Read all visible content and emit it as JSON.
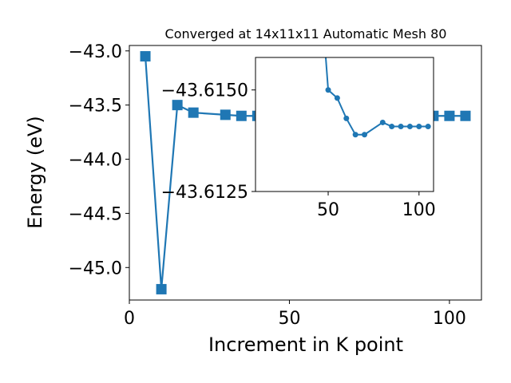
{
  "chart_data": [
    {
      "type": "line",
      "title": "Converged at 14x11x11 Automatic Mesh 80",
      "xlabel": "Increment in K point",
      "ylabel": "Energy (eV)",
      "xlim": [
        0,
        110
      ],
      "ylim": [
        -45.3,
        -42.95
      ],
      "xticks": [
        0,
        50,
        100
      ],
      "xtick_labels": [
        "0",
        "50",
        "100"
      ],
      "yticks": [
        -43.0,
        -43.5,
        -44.0,
        -44.5,
        -45.0
      ],
      "ytick_labels": [
        "−43.0",
        "−43.5",
        "−44.0",
        "−44.5",
        "−45.0"
      ],
      "marker": "square",
      "color": "#1f77b4",
      "grid": false,
      "series": [
        {
          "x": [
            5,
            10,
            15,
            20,
            30,
            35,
            40,
            50,
            55,
            60,
            65,
            70,
            75,
            80,
            85,
            90,
            95,
            100,
            105
          ],
          "y": [
            -43.05,
            -45.2,
            -43.5,
            -43.57,
            -43.59,
            -43.6,
            -43.6,
            -43.6,
            -43.6,
            -43.6,
            -43.6,
            -43.6,
            -43.6,
            -43.6,
            -43.6,
            -43.6,
            -43.6,
            -43.6,
            -43.6
          ]
        }
      ]
    },
    {
      "type": "line",
      "title": "",
      "inset": true,
      "xlim": [
        10,
        108
      ],
      "ylim": [
        -43.6125,
        -43.6158
      ],
      "xticks": [
        50,
        100
      ],
      "xtick_labels": [
        "50",
        "100"
      ],
      "yticks": [
        -43.615,
        -43.6125
      ],
      "ytick_labels": [
        "−43.6150",
        "−43.6125"
      ],
      "marker": "circle",
      "color": "#1f77b4",
      "series": [
        {
          "x": [
            45,
            50,
            55,
            60,
            65,
            70,
            80,
            85,
            90,
            95,
            100,
            105
          ],
          "y": [
            -43.618,
            -43.615,
            -43.6148,
            -43.6143,
            -43.6139,
            -43.6139,
            -43.6142,
            -43.6141,
            -43.6141,
            -43.6141,
            -43.6141,
            -43.6141
          ]
        }
      ]
    }
  ]
}
